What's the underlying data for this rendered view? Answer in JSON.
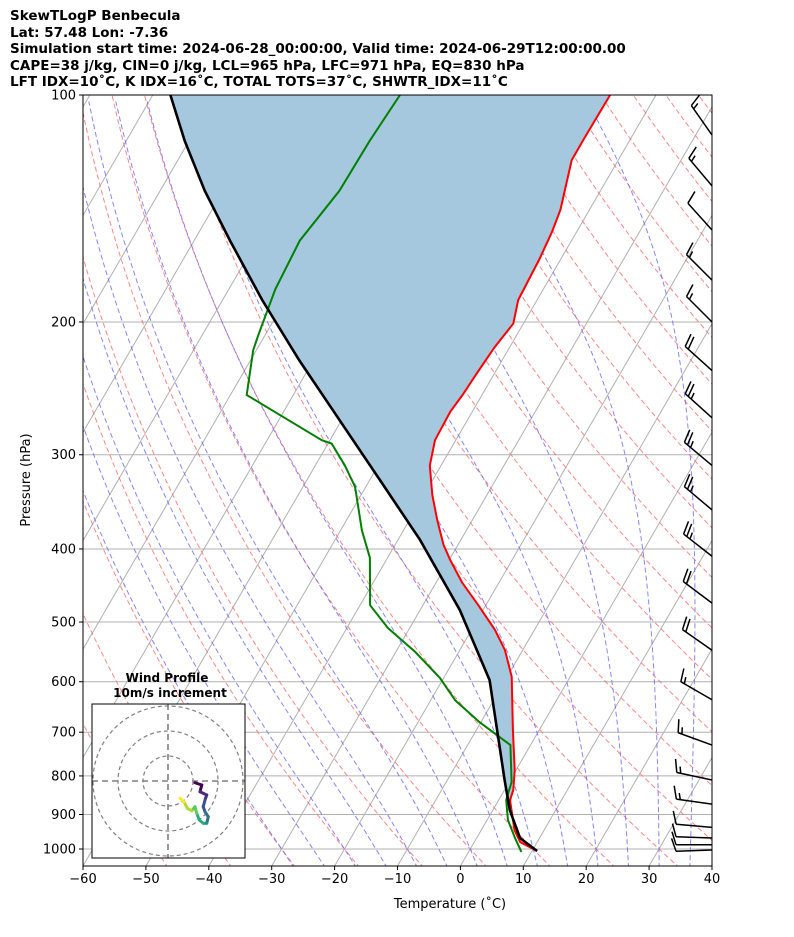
{
  "header": {
    "line1": "SkewTLogP Benbecula",
    "line2": "Lat: 57.48   Lon: -7.36",
    "line3": "Simulation start time: 2024-06-28_00:00:00, Valid time: 2024-06-29T12:00:00.00",
    "line4": "CAPE=38 j/kg, CIN=0 j/kg, LCL=965 hPa, LFC=971 hPa, EQ=830 hPa",
    "line5": "LFT IDX=10˚C, K IDX=16˚C, TOTAL TOTS=37˚C, SHWTR_IDX=11˚C"
  },
  "chart_data": {
    "type": "line",
    "title": "SkewTLogP Benbecula",
    "xlabel": "Temperature (˚C)",
    "ylabel": "Pressure (hPa)",
    "xlim": [
      -60,
      40
    ],
    "ylim": [
      1054,
      100
    ],
    "xticks": [
      -60,
      -50,
      -40,
      -30,
      -20,
      -10,
      0,
      10,
      20,
      30,
      40
    ],
    "yticks": [
      100,
      200,
      300,
      400,
      500,
      600,
      700,
      800,
      900,
      1000
    ],
    "grid": true,
    "colors": {
      "temperature": "#ff0000",
      "dewpoint": "#008000",
      "parcel": "#000000",
      "cape_fill": "#a6c8df",
      "cin_fill": "#e6b4ab",
      "isotherm": "#b0b0b0",
      "dry_adiabat": "#ff6666",
      "moist_adiabat": "#6666ff"
    },
    "temperature": [
      [
        100,
        -47.3
      ],
      [
        114,
        -47.4
      ],
      [
        122,
        -47.4
      ],
      [
        142,
        -44.6
      ],
      [
        152,
        -43.9
      ],
      [
        165,
        -43.4
      ],
      [
        187,
        -43.0
      ],
      [
        201,
        -41.6
      ],
      [
        216,
        -42.4
      ],
      [
        233,
        -42.8
      ],
      [
        250,
        -43.1
      ],
      [
        263,
        -43.5
      ],
      [
        287,
        -43.3
      ],
      [
        310,
        -41.8
      ],
      [
        339,
        -38.7
      ],
      [
        366,
        -35.6
      ],
      [
        395,
        -32.3
      ],
      [
        414,
        -29.8
      ],
      [
        443,
        -25.9
      ],
      [
        475,
        -21.2
      ],
      [
        512,
        -16.3
      ],
      [
        545,
        -12.8
      ],
      [
        591,
        -9.3
      ],
      [
        695,
        -4.2
      ],
      [
        786,
        -0.2
      ],
      [
        835,
        1.4
      ],
      [
        861,
        1.8
      ],
      [
        944,
        5.3
      ],
      [
        979,
        7.3
      ],
      [
        1006,
        10.8
      ]
    ],
    "dewpoint": [
      [
        100,
        -80.7
      ],
      [
        115,
        -81.3
      ],
      [
        134,
        -81.5
      ],
      [
        156,
        -83.2
      ],
      [
        181,
        -82.6
      ],
      [
        208,
        -81.1
      ],
      [
        218,
        -80.5
      ],
      [
        250,
        -77.4
      ],
      [
        287,
        -61.3
      ],
      [
        290,
        -59.4
      ],
      [
        310,
        -55.3
      ],
      [
        331,
        -51.7
      ],
      [
        378,
        -46.6
      ],
      [
        411,
        -42.8
      ],
      [
        475,
        -38.4
      ],
      [
        509,
        -33.5
      ],
      [
        548,
        -26.9
      ],
      [
        593,
        -20.6
      ],
      [
        635,
        -16.1
      ],
      [
        679,
        -10.2
      ],
      [
        728,
        -3.2
      ],
      [
        815,
        0.4
      ],
      [
        861,
        1.2
      ],
      [
        915,
        3.3
      ],
      [
        967,
        6.1
      ],
      [
        1009,
        8.4
      ]
    ],
    "parcel": [
      [
        100,
        -117.2
      ],
      [
        115,
        -110.7
      ],
      [
        134,
        -102.9
      ],
      [
        156,
        -94.3
      ],
      [
        187,
        -83.7
      ],
      [
        225,
        -72.2
      ],
      [
        270,
        -60.3
      ],
      [
        324,
        -48.4
      ],
      [
        389,
        -36.5
      ],
      [
        482,
        -23.7
      ],
      [
        597,
        -12.5
      ],
      [
        810,
        -0.9
      ],
      [
        888,
        2.7
      ],
      [
        967,
        6.9
      ],
      [
        1006,
        10.8
      ]
    ],
    "wind_barbs": [
      {
        "p": 113,
        "speed_kt": 15,
        "dir": 325
      },
      {
        "p": 132,
        "speed_kt": 15,
        "dir": 320
      },
      {
        "p": 151,
        "speed_kt": 10,
        "dir": 318
      },
      {
        "p": 176,
        "speed_kt": 15,
        "dir": 315
      },
      {
        "p": 200,
        "speed_kt": 15,
        "dir": 315
      },
      {
        "p": 232,
        "speed_kt": 20,
        "dir": 312
      },
      {
        "p": 268,
        "speed_kt": 25,
        "dir": 312
      },
      {
        "p": 310,
        "speed_kt": 25,
        "dir": 310
      },
      {
        "p": 355,
        "speed_kt": 25,
        "dir": 310
      },
      {
        "p": 409,
        "speed_kt": 25,
        "dir": 308
      },
      {
        "p": 472,
        "speed_kt": 20,
        "dir": 307
      },
      {
        "p": 545,
        "speed_kt": 20,
        "dir": 305
      },
      {
        "p": 634,
        "speed_kt": 15,
        "dir": 300
      },
      {
        "p": 728,
        "speed_kt": 15,
        "dir": 290
      },
      {
        "p": 810,
        "speed_kt": 15,
        "dir": 282
      },
      {
        "p": 872,
        "speed_kt": 15,
        "dir": 278
      },
      {
        "p": 936,
        "speed_kt": 10,
        "dir": 275
      },
      {
        "p": 967,
        "speed_kt": 10,
        "dir": 272
      },
      {
        "p": 987,
        "speed_kt": 10,
        "dir": 270
      },
      {
        "p": 1003,
        "speed_kt": 10,
        "dir": 268
      }
    ],
    "hodograph": {
      "title": "Wind Profile",
      "subtitle": "10m/s increment",
      "ring_increment_ms": 10,
      "rings": [
        10,
        20,
        30
      ],
      "uv": [
        [
          10.8,
          -0.7
        ],
        [
          13.5,
          -1.6
        ],
        [
          12.8,
          -4.3
        ],
        [
          15.5,
          -5.6
        ],
        [
          14.8,
          -7.6
        ],
        [
          14.1,
          -10.3
        ],
        [
          14.8,
          -12.3
        ],
        [
          16.1,
          -14.3
        ],
        [
          15.5,
          -16.9
        ],
        [
          14.1,
          -16.9
        ],
        [
          12.5,
          -15.6
        ],
        [
          11.5,
          -12.9
        ],
        [
          10.8,
          -10.3
        ],
        [
          9.5,
          -11.9
        ],
        [
          7.7,
          -10.9
        ],
        [
          6.4,
          -8.3
        ],
        [
          4.8,
          -6.9
        ]
      ]
    }
  }
}
